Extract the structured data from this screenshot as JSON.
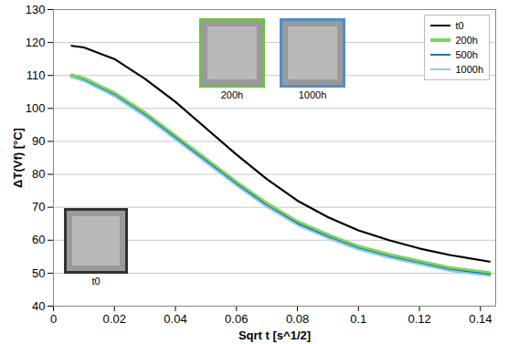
{
  "chart_data": {
    "type": "line",
    "x_label": "Sqrt t [s^1/2]",
    "y_label": "ΔT(Vf) [°C]",
    "xlim": [
      0,
      0.145
    ],
    "xticks": [
      0,
      0.02,
      0.04,
      0.06,
      0.08,
      0.1,
      0.12,
      0.14
    ],
    "ylim": [
      40,
      130
    ],
    "yticks": [
      40,
      50,
      60,
      70,
      80,
      90,
      100,
      110,
      120,
      130
    ],
    "grid": true,
    "legend": "top-right",
    "x": [
      0.006,
      0.01,
      0.02,
      0.03,
      0.04,
      0.05,
      0.06,
      0.07,
      0.08,
      0.09,
      0.1,
      0.11,
      0.12,
      0.13,
      0.143
    ],
    "series": [
      {
        "name": "t0",
        "color": "#000000",
        "values": [
          119,
          118.5,
          115,
          109,
          102,
          94,
          86,
          78.5,
          72,
          67,
          63,
          60,
          57.5,
          55.5,
          53.5
        ]
      },
      {
        "name": "200h",
        "color": "#7dd45a",
        "values": [
          110,
          109,
          104.5,
          98.5,
          91.5,
          84.5,
          77.5,
          71,
          65.5,
          61.5,
          58,
          55.5,
          53.5,
          51.5,
          50
        ]
      },
      {
        "name": "500h",
        "color": "#1f6fb4",
        "values": [
          109.5,
          108.5,
          104,
          98,
          91,
          84,
          77,
          70.5,
          65,
          61,
          57.5,
          55,
          53,
          51,
          49.5
        ]
      },
      {
        "name": "1000h",
        "color": "#8ccbea",
        "values": [
          109.5,
          108.3,
          103.7,
          97.6,
          90.6,
          83.6,
          76.6,
          70.1,
          64.6,
          60.6,
          57.2,
          54.7,
          52.7,
          50.7,
          49.2
        ]
      }
    ],
    "annotations": [
      "t0",
      "200h",
      "1000h"
    ]
  }
}
